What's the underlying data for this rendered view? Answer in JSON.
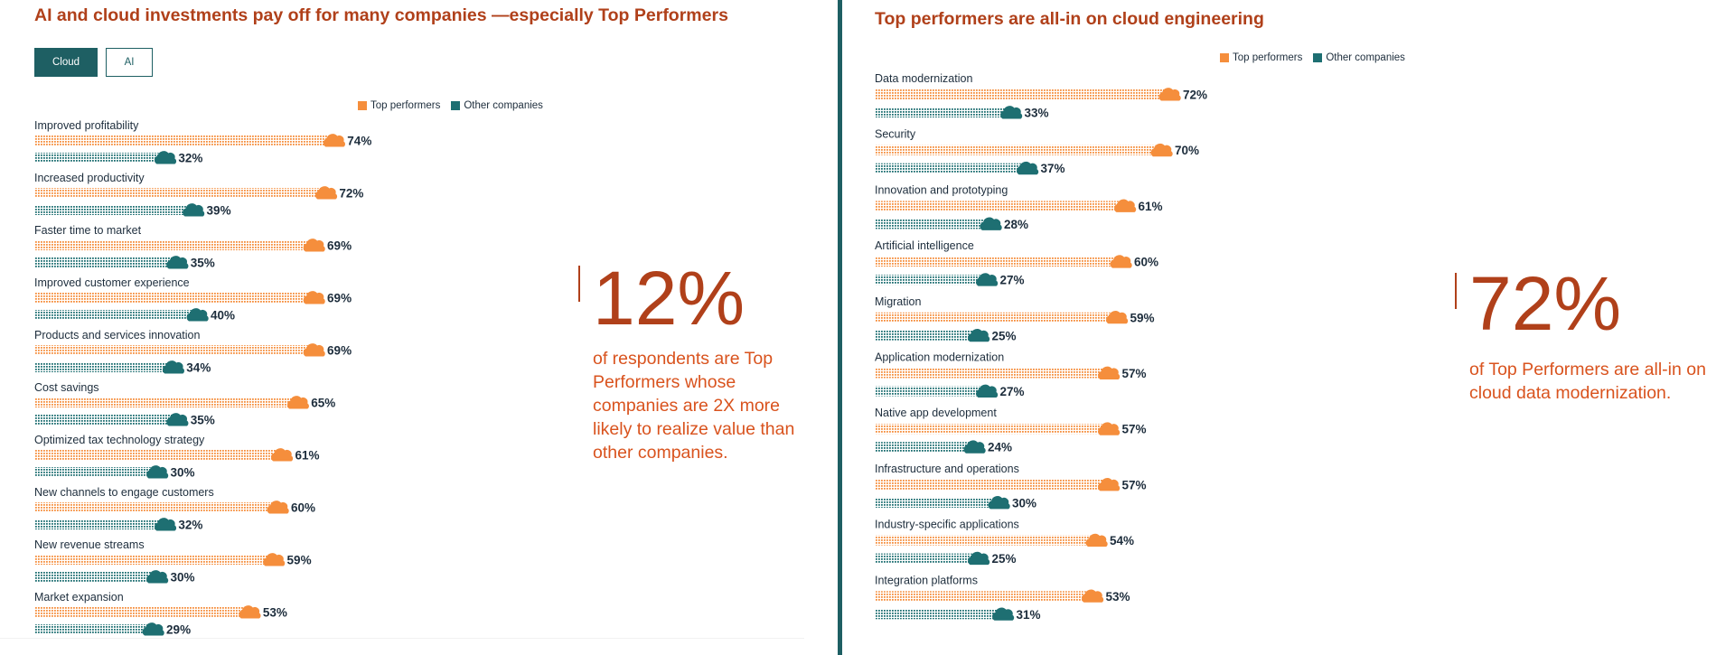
{
  "colors": {
    "top_performers": "#f58e3c",
    "other_companies": "#1e6f72",
    "accent": "#b0401a",
    "tab_active": "#1e5f63"
  },
  "tabs": [
    {
      "label": "Cloud",
      "active": true
    },
    {
      "label": "AI",
      "active": false
    }
  ],
  "legend": {
    "top": "Top performers",
    "other": "Other companies"
  },
  "left_panel": {
    "title": "AI and cloud investments pay off for many companies —especially Top Performers",
    "stat": "12%",
    "callout": "of respondents are Top Performers whose companies are 2X more likely to realize value than other companies."
  },
  "right_panel": {
    "title": "Top performers are all-in on cloud engineering",
    "stat": "72%",
    "callout": "of Top Performers are all-in on cloud data modernization."
  },
  "chart_data": [
    {
      "type": "bar",
      "orientation": "horizontal",
      "legend_position": "top-right",
      "categories": [
        "Improved profitability",
        "Increased productivity",
        "Faster time to market",
        "Improved customer experience",
        "Products and services innovation",
        "Cost savings",
        "Optimized tax technology strategy",
        "New channels to engage customers",
        "New revenue streams",
        "Market expansion"
      ],
      "series": [
        {
          "name": "Top performers",
          "values": [
            74,
            72,
            69,
            69,
            69,
            65,
            61,
            60,
            59,
            53
          ]
        },
        {
          "name": "Other companies",
          "values": [
            32,
            39,
            35,
            40,
            34,
            35,
            30,
            32,
            30,
            29
          ]
        }
      ],
      "unit": "%"
    },
    {
      "type": "bar",
      "orientation": "horizontal",
      "legend_position": "top-right",
      "categories": [
        "Data modernization",
        "Security",
        "Innovation and prototyping",
        "Artificial intelligence",
        "Migration",
        "Application modernization",
        "Native app development",
        "Infrastructure and operations",
        "Industry-specific applications",
        "Integration platforms"
      ],
      "series": [
        {
          "name": "Top performers",
          "values": [
            72,
            70,
            61,
            60,
            59,
            57,
            57,
            57,
            54,
            53
          ]
        },
        {
          "name": "Other companies",
          "values": [
            33,
            37,
            28,
            27,
            25,
            27,
            24,
            30,
            25,
            31
          ]
        }
      ],
      "unit": "%"
    }
  ]
}
